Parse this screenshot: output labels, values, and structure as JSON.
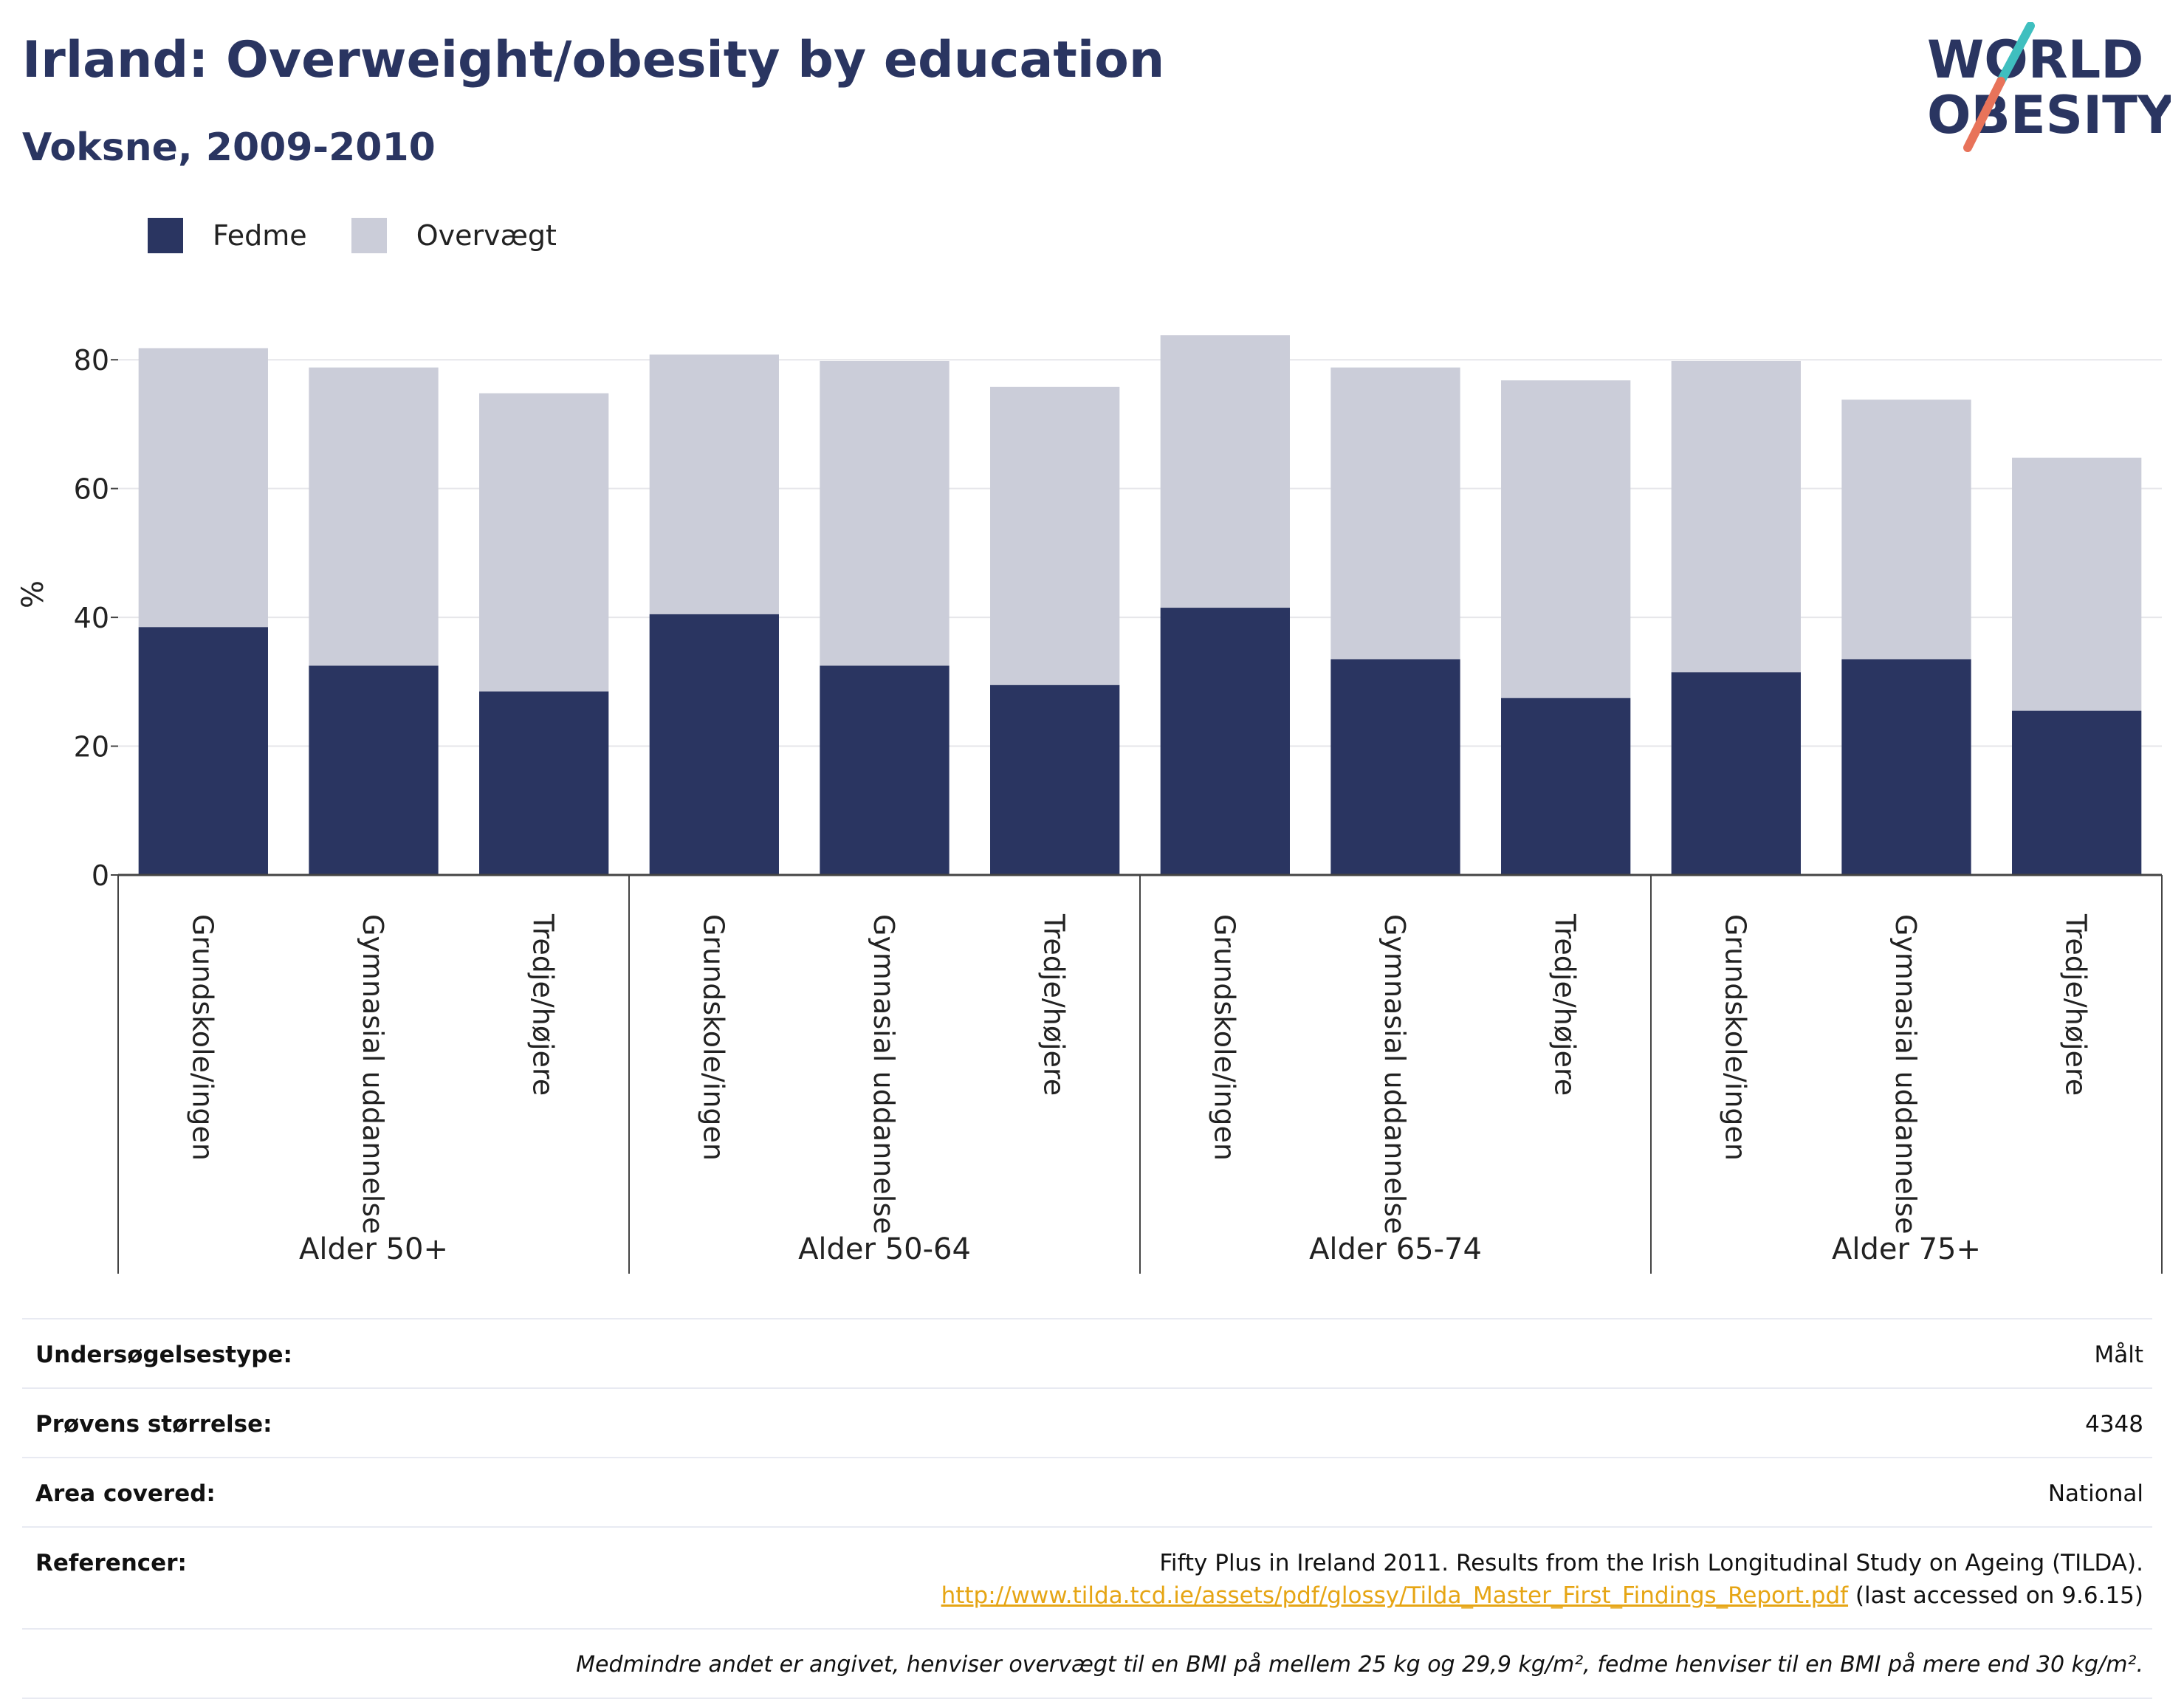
{
  "header": {
    "title": "Irland: Overweight/obesity by education",
    "subtitle": "Voksne, 2009-2010"
  },
  "logo": {
    "line1": "WORLD",
    "line2": "OBESITY"
  },
  "chart_data": {
    "type": "bar",
    "stacked": true,
    "groups": [
      "Alder 50+",
      "Alder 50-64",
      "Alder 65-74",
      "Alder 75+"
    ],
    "categories": [
      "Grundskole/ingen",
      "Gymnasial uddannelse",
      "Tredje/højere"
    ],
    "series": [
      {
        "name": "Fedme",
        "color": "#2a3561",
        "values": [
          [
            38.5,
            32.5,
            28.5
          ],
          [
            40.5,
            32.5,
            29.5
          ],
          [
            41.5,
            33.5,
            27.5
          ],
          [
            31.5,
            33.5,
            25.5
          ]
        ]
      },
      {
        "name": "Overvægt",
        "color": "#cbcdd9",
        "values": [
          [
            43.3,
            46.3,
            46.3
          ],
          [
            40.3,
            47.3,
            46.3
          ],
          [
            42.3,
            45.3,
            49.3
          ],
          [
            48.3,
            40.3,
            39.3
          ]
        ]
      }
    ],
    "ylabel": "%",
    "ylim": [
      0,
      90
    ],
    "yticks": [
      0,
      20,
      40,
      60,
      80
    ],
    "grid": true,
    "legend_position": "top-left"
  },
  "meta": {
    "survey_type_label": "Undersøgelsestype:",
    "survey_type_value": "Målt",
    "sample_size_label": "Prøvens størrelse:",
    "sample_size_value": "4348",
    "area_label": "Area covered:",
    "area_value": "National",
    "references_label": "Referencer:",
    "references_text": "Fifty Plus in Ireland 2011. Results from the Irish Longitudinal Study on Ageing (TILDA).",
    "references_link": "http://www.tilda.tcd.ie/assets/pdf/glossy/Tilda_Master_First_Findings_Report.pdf",
    "references_accessed": " (last accessed on 9.6.15)",
    "footnote": "Medmindre andet er angivet, henviser overvægt til en BMI på mellem 25 kg og 29,9 kg/m², fedme henviser til en BMI på mere end 30 kg/m²."
  }
}
